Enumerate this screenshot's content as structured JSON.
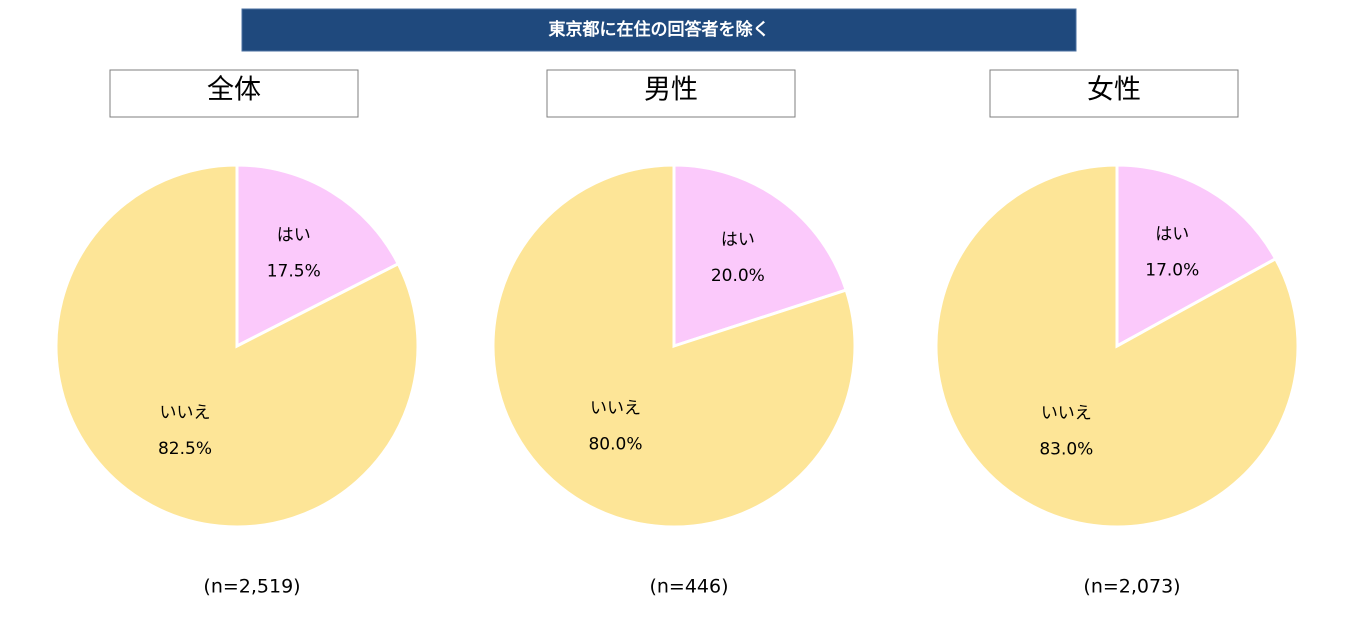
{
  "header": "東京都に在住の回答者を除く",
  "chart_data": [
    {
      "type": "pie",
      "title": "全体",
      "categories": [
        "はい",
        "いいえ"
      ],
      "values": [
        17.5,
        82.5
      ],
      "value_labels": [
        "17.5%",
        "82.5%"
      ],
      "colors": [
        "#fbc9fb",
        "#fde597"
      ],
      "note": "(n=2,519)"
    },
    {
      "type": "pie",
      "title": "男性",
      "categories": [
        "はい",
        "いいえ"
      ],
      "values": [
        20.0,
        80.0
      ],
      "value_labels": [
        "20.0%",
        "80.0%"
      ],
      "colors": [
        "#fbc9fb",
        "#fde597"
      ],
      "note": "(n=446)"
    },
    {
      "type": "pie",
      "title": "女性",
      "categories": [
        "はい",
        "いいえ"
      ],
      "values": [
        17.0,
        83.0
      ],
      "value_labels": [
        "17.0%",
        "83.0%"
      ],
      "colors": [
        "#fbc9fb",
        "#fde597"
      ],
      "note": "(n=2,073)"
    }
  ]
}
